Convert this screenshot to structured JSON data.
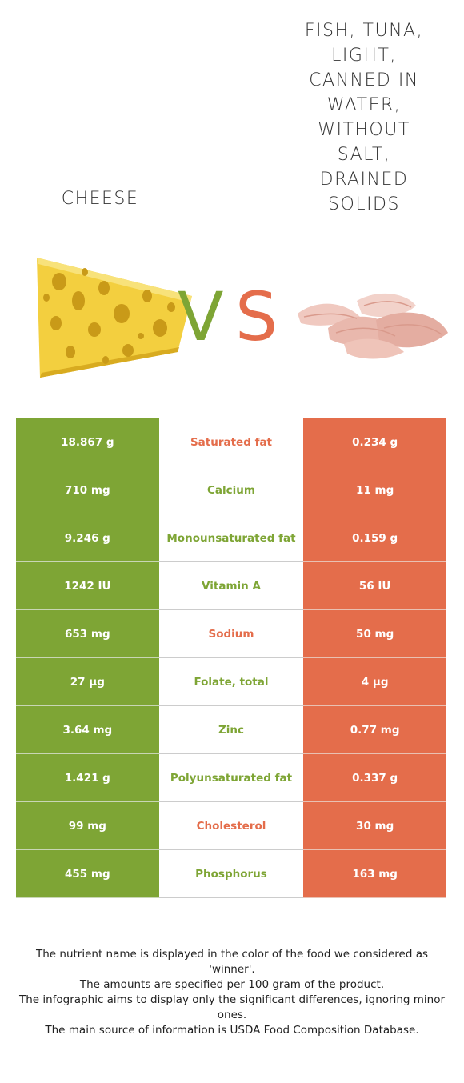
{
  "left_food": {
    "name": "CHEESE",
    "color": "#7ea535"
  },
  "right_food": {
    "name": "FISH, TUNA,\nLIGHT,\nCANNED IN\nWATER,\nWITHOUT\nSALT,\nDRAINED\nSOLIDS",
    "color": "#e46d4b"
  },
  "vs": {
    "v": "V",
    "s": "S"
  },
  "rows": [
    {
      "left": "18.867 g",
      "nutrient": "Saturated fat",
      "right": "0.234 g",
      "winner": "right"
    },
    {
      "left": "710 mg",
      "nutrient": "Calcium",
      "right": "11 mg",
      "winner": "left"
    },
    {
      "left": "9.246 g",
      "nutrient": "Monounsaturated fat",
      "right": "0.159 g",
      "winner": "left"
    },
    {
      "left": "1242 IU",
      "nutrient": "Vitamin A",
      "right": "56 IU",
      "winner": "left"
    },
    {
      "left": "653 mg",
      "nutrient": "Sodium",
      "right": "50 mg",
      "winner": "right"
    },
    {
      "left": "27 µg",
      "nutrient": "Folate, total",
      "right": "4 µg",
      "winner": "left"
    },
    {
      "left": "3.64 mg",
      "nutrient": "Zinc",
      "right": "0.77 mg",
      "winner": "left"
    },
    {
      "left": "1.421 g",
      "nutrient": "Polyunsaturated fat",
      "right": "0.337 g",
      "winner": "left"
    },
    {
      "left": "99 mg",
      "nutrient": "Cholesterol",
      "right": "30 mg",
      "winner": "right"
    },
    {
      "left": "455 mg",
      "nutrient": "Phosphorus",
      "right": "163 mg",
      "winner": "left"
    }
  ],
  "footer": {
    "line1": "The nutrient name is displayed in the color of the food we considered as 'winner'.",
    "line2": "The amounts are specified per 100 gram of the product.",
    "line3": "The infographic aims to display only the significant differences, ignoring minor ones.",
    "line4": "The main source of information is USDA Food Composition Database."
  }
}
